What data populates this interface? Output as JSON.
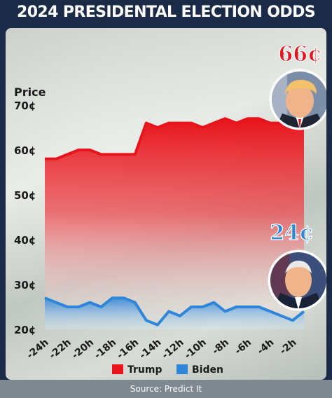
{
  "title": "2024 PRESIDENTAL ELECTION ODDS",
  "chart_data": {
    "type": "area",
    "title": "2024 PRESIDENTAL ELECTION ODDS",
    "ylabel": "Price",
    "ylim": [
      20,
      70
    ],
    "yticks": [
      20,
      30,
      40,
      50,
      60,
      70
    ],
    "ytick_labels": [
      "20¢",
      "30¢",
      "40¢",
      "50¢",
      "60¢",
      "70¢"
    ],
    "x": [
      -24,
      -23,
      -22,
      -21,
      -20,
      -19,
      -18,
      -17,
      -16,
      -15,
      -14,
      -13,
      -12,
      -11,
      -10,
      -9,
      -8,
      -7,
      -6,
      -5,
      -4,
      -3,
      -2,
      -1
    ],
    "xtick_values": [
      -24,
      -22,
      -20,
      -18,
      -16,
      -14,
      -12,
      -10,
      -8,
      -6,
      -4,
      -2
    ],
    "xtick_labels": [
      "-24h",
      "-22h",
      "-20h",
      "-18h",
      "-16h",
      "-14h",
      "-12h",
      "-10h",
      "-8h",
      "-6h",
      "-4h",
      "-2h"
    ],
    "series": [
      {
        "name": "Trump",
        "color": "#e8141b",
        "values": [
          58,
          58,
          59,
          60,
          60,
          59,
          59,
          59,
          59,
          66,
          65,
          66,
          66,
          66,
          65,
          66,
          67,
          66,
          67,
          67,
          66,
          66,
          66,
          66
        ]
      },
      {
        "name": "Biden",
        "color": "#2f86d8",
        "values": [
          27,
          26,
          25,
          25,
          26,
          25,
          27,
          27,
          26,
          22,
          21,
          24,
          23,
          25,
          25,
          26,
          24,
          25,
          25,
          25,
          24,
          23,
          22,
          24
        ]
      }
    ],
    "annotations": [
      {
        "text": "66¢",
        "series": "Trump",
        "color": "#e8141b"
      },
      {
        "text": "24¢",
        "series": "Biden",
        "color": "#2f86d8"
      }
    ],
    "legend_position": "bottom",
    "source": "Source: Predict It",
    "grid": false
  },
  "colors": {
    "header_bg": "#1b2b47",
    "trump_red": "#e8141b",
    "biden_blue": "#2f86d8"
  },
  "icons": [
    "trump-portrait-icon",
    "biden-portrait-icon"
  ]
}
